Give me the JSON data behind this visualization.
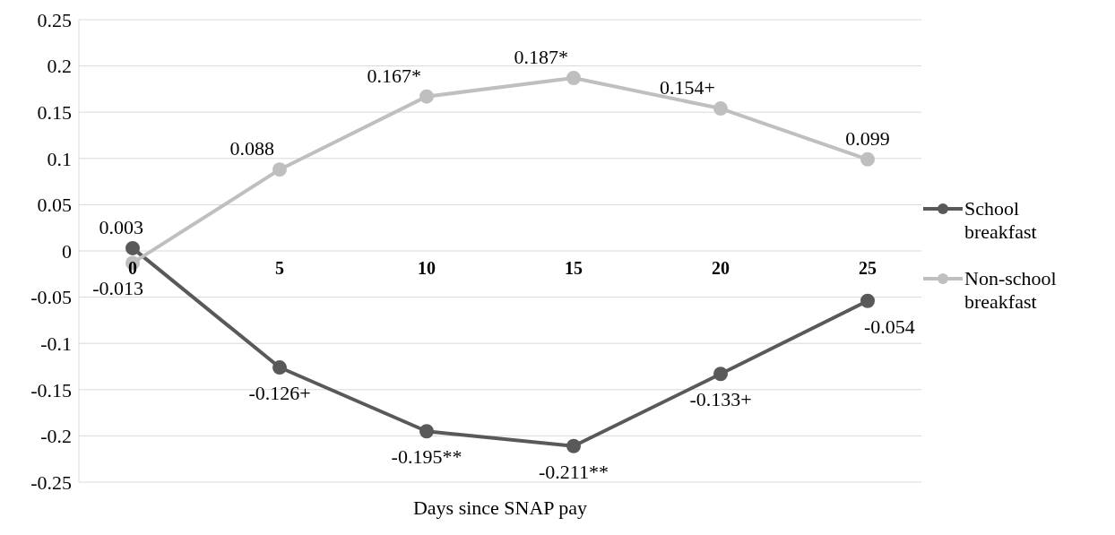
{
  "chart_data": {
    "type": "line",
    "xlabel": "Days since SNAP pay",
    "categories": [
      "0",
      "5",
      "10",
      "15",
      "20",
      "25"
    ],
    "series": [
      {
        "name": "School breakfast",
        "color": "#595959",
        "values": [
          0.003,
          -0.126,
          -0.195,
          -0.211,
          -0.133,
          -0.054
        ],
        "value_labels": [
          "0.003",
          "-0.126+",
          "-0.195**",
          "-0.211**",
          "-0.133+",
          "-0.054"
        ]
      },
      {
        "name": "Non-school breakfast",
        "color": "#bfbfbf",
        "values": [
          -0.013,
          0.088,
          0.167,
          0.187,
          0.154,
          0.099
        ],
        "value_labels": [
          "-0.013",
          "0.088",
          "0.167*",
          "0.187*",
          "0.154+",
          "0.099"
        ]
      }
    ],
    "ylim": [
      -0.25,
      0.25
    ],
    "yticks": [
      -0.25,
      -0.2,
      -0.15,
      -0.1,
      -0.05,
      0,
      0.05,
      0.1,
      0.15,
      0.2,
      0.25
    ],
    "grid": "y",
    "legend": "right",
    "marker": "circle",
    "line_style": "solid"
  }
}
